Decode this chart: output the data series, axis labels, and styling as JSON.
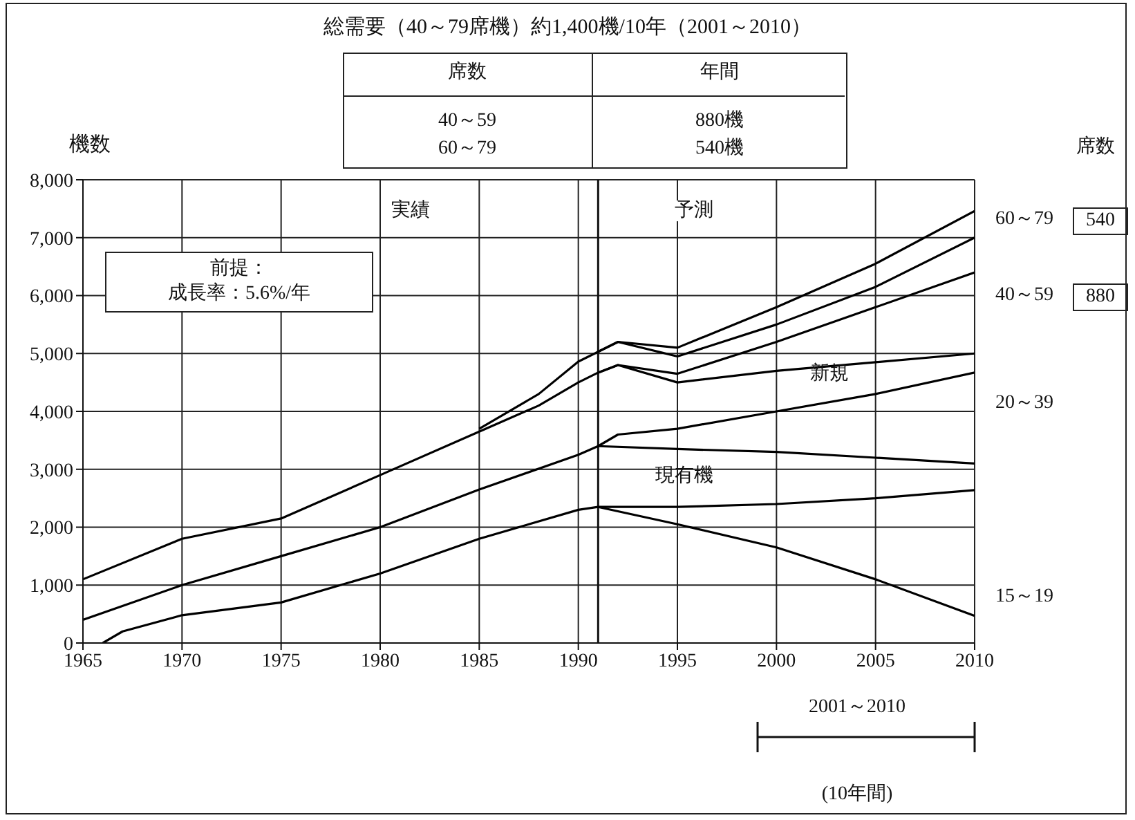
{
  "chart_data": {
    "type": "line",
    "title": "総需要（40～79席機）約1,400機/10年（2001～2010）",
    "ylabel": "機数",
    "xlim": [
      1965,
      2010
    ],
    "xticks": [
      1965,
      1970,
      1975,
      1980,
      1985,
      1990,
      1995,
      2000,
      2005,
      2010
    ],
    "ylim": [
      0,
      8000
    ],
    "yticks": [
      0,
      {
        "value": 1000,
        "label": "1,000"
      },
      {
        "value": 2000,
        "label": "2,000"
      },
      {
        "value": 3000,
        "label": "3,000"
      },
      {
        "value": 4000,
        "label": "4,000"
      },
      {
        "value": 5000,
        "label": "5,000"
      },
      {
        "value": 6000,
        "label": "6,000"
      },
      {
        "value": 7000,
        "label": "7,000"
      },
      {
        "value": 8000,
        "label": "8,000"
      }
    ],
    "grid": true,
    "marker": "none",
    "line_style": "solid",
    "ref_lines": [
      {
        "axis": "x",
        "value": 1991
      }
    ],
    "series": [
      {
        "color": "#000000",
        "x": [
          1966,
          1967,
          1970,
          1975,
          1980,
          1985,
          1990,
          1991,
          1995,
          2000,
          2005,
          2010
        ],
        "values": [
          0,
          200,
          480,
          700,
          1200,
          1800,
          2300,
          2350,
          2350,
          2400,
          2500,
          2640
        ]
      },
      {
        "color": "#000000",
        "x": [
          1965,
          1970,
          1975,
          1980,
          1985,
          1990,
          1991,
          1992,
          1995,
          2000,
          2005,
          2010
        ],
        "values": [
          400,
          1000,
          1500,
          2000,
          2650,
          3250,
          3400,
          3600,
          3700,
          4000,
          4300,
          4670
        ]
      },
      {
        "color": "#000000",
        "x": [
          1965,
          1970,
          1975,
          1980,
          1985,
          1988,
          1990,
          1991,
          1992,
          1995,
          2000,
          2005,
          2010
        ],
        "values": [
          1100,
          1800,
          2150,
          2900,
          3650,
          4100,
          4500,
          4670,
          4800,
          4650,
          5200,
          5800,
          6400
        ]
      },
      {
        "color": "#000000",
        "x": [
          1985,
          1988,
          1990,
          1991,
          1992,
          1995,
          2000,
          2005,
          2010
        ],
        "values": [
          3700,
          4300,
          4860,
          5030,
          5200,
          5100,
          5800,
          6550,
          7460
        ]
      },
      {
        "color": "#000000",
        "x": [
          1991,
          1995,
          2000,
          2005,
          2010
        ],
        "values": [
          2350,
          2050,
          1650,
          1100,
          470
        ]
      },
      {
        "color": "#000000",
        "x": [
          1991,
          1995,
          2000,
          2005,
          2010
        ],
        "values": [
          3400,
          3350,
          3300,
          3200,
          3100
        ]
      },
      {
        "color": "#000000",
        "x": [
          1991,
          1992,
          1995,
          2000,
          2005,
          2010
        ],
        "values": [
          4670,
          4800,
          4500,
          4700,
          4850,
          5000
        ]
      },
      {
        "color": "#000000",
        "x": [
          1991,
          1992,
          1995,
          2000,
          2005,
          2010
        ],
        "values": [
          5030,
          5200,
          4950,
          5500,
          6150,
          7000
        ]
      }
    ],
    "annotations": [
      "実績",
      "予測",
      "前提：",
      "成長率：5.6%/年",
      "現有機",
      "新規",
      "席数",
      "年間",
      "40～59",
      "880機",
      "60～79",
      "540機",
      "席数",
      "60～79",
      "540",
      "40～59",
      "880",
      "20～39",
      "15～19",
      "2001～2010",
      "(10年間)"
    ]
  }
}
